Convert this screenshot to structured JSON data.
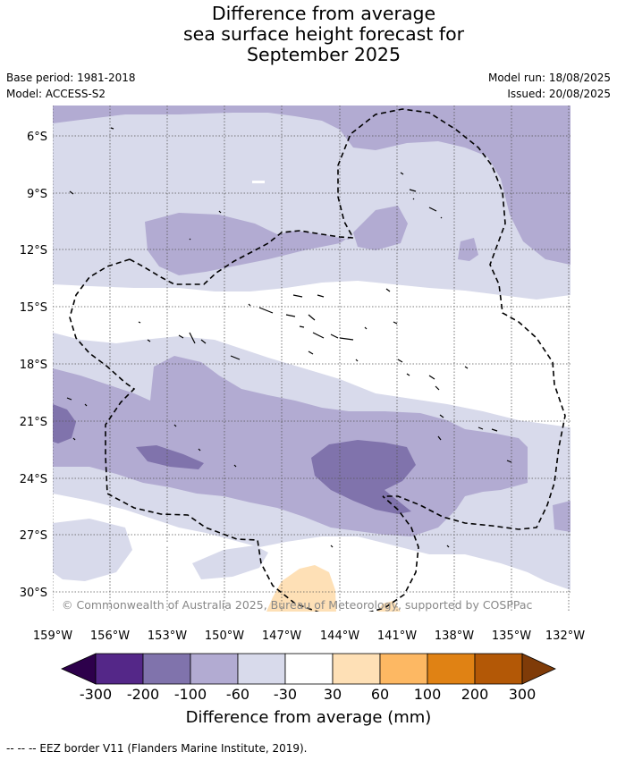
{
  "title": {
    "line1": "Difference from average",
    "line2": "sea surface height forecast for",
    "line3": "September 2025"
  },
  "meta": {
    "base_period": "Base period: 1981-2018",
    "model": "Model: ACCESS-S2",
    "model_run": "Model run: 18/08/2025",
    "issued": "Issued: 20/08/2025"
  },
  "map": {
    "lat_labels": [
      "6°S",
      "9°S",
      "12°S",
      "15°S",
      "18°S",
      "21°S",
      "24°S",
      "27°S",
      "30°S"
    ],
    "lon_labels": [
      "159°W",
      "156°W",
      "153°W",
      "150°W",
      "147°W",
      "144°W",
      "141°W",
      "138°W",
      "135°W",
      "132°W"
    ],
    "copyright": "© Commonwealth of Australia 2025, Bureau of Meteorology, supported by COSPPac"
  },
  "colorbar": {
    "labels": [
      "-300",
      "-200",
      "-100",
      "-60",
      "-30",
      "30",
      "60",
      "100",
      "200",
      "300"
    ],
    "colors": [
      "#2d004b",
      "#542788",
      "#8073ac",
      "#b2abd2",
      "#d8daeb",
      "#ffffff",
      "#fee0b6",
      "#fdb863",
      "#e08214",
      "#b35806",
      "#7f3b08"
    ],
    "title": "Difference from average (mm)"
  },
  "footnote": "--  --  -- EEZ border V11 (Flanders Marine Institute, 2019)."
}
